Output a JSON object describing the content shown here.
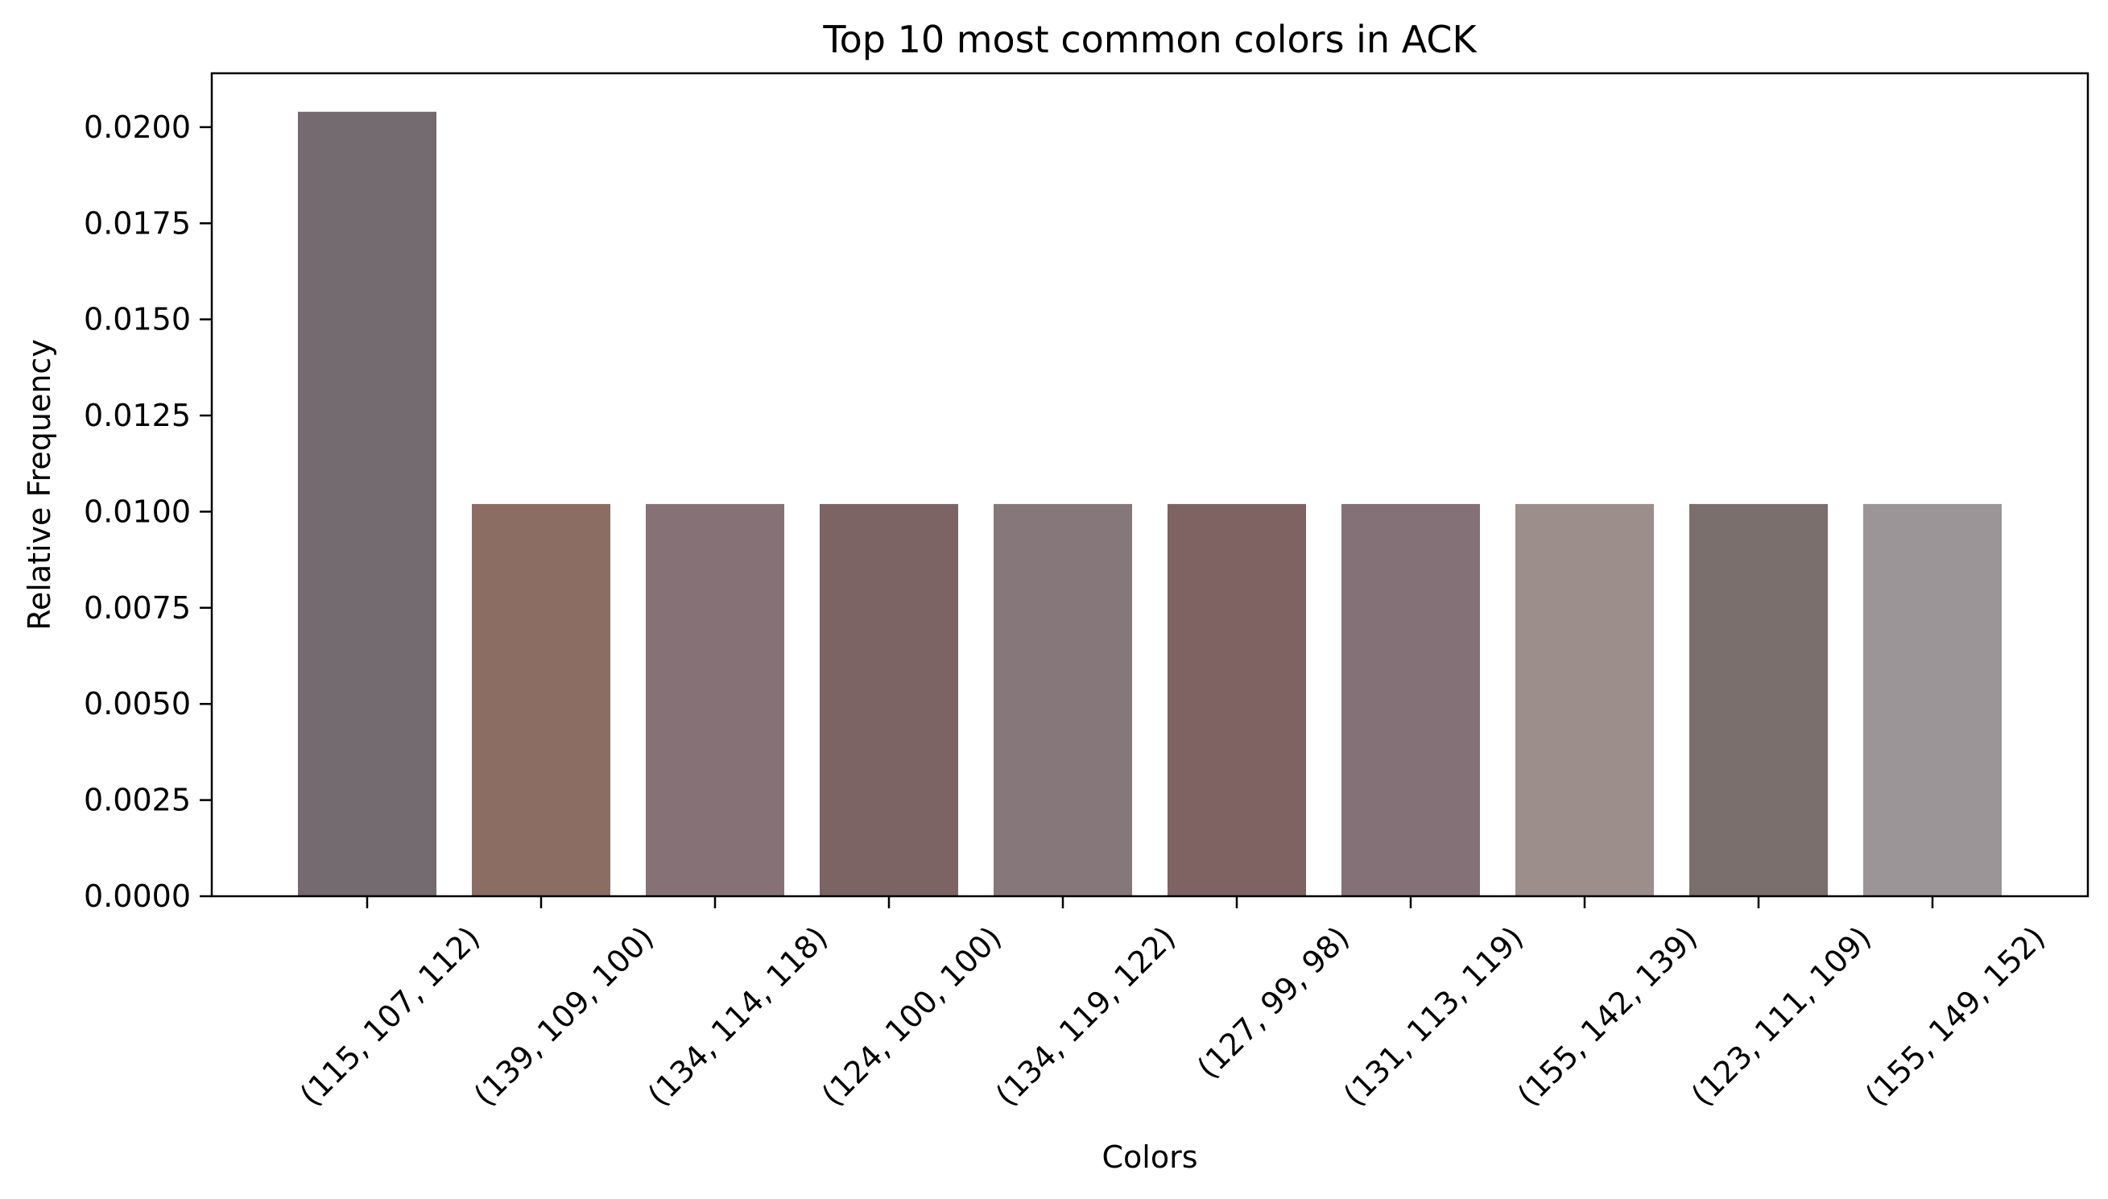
{
  "chart_data": {
    "type": "bar",
    "title": "Top 10 most common colors in ACK",
    "xlabel": "Colors",
    "ylabel": "Relative Frequency",
    "categories": [
      "(115, 107, 112)",
      "(139, 109, 100)",
      "(134, 114, 118)",
      "(124, 100, 100)",
      "(134, 119, 122)",
      "(127, 99, 98)",
      "(131, 113, 119)",
      "(155, 142, 139)",
      "(123, 111, 109)",
      "(155, 149, 152)"
    ],
    "values": [
      0.0204,
      0.0102,
      0.0102,
      0.0102,
      0.0102,
      0.0102,
      0.0102,
      0.0102,
      0.0102,
      0.0102
    ],
    "bar_colors": [
      "#736b70",
      "#8b6d64",
      "#867276",
      "#7c6464",
      "#86777a",
      "#7f6362",
      "#837177",
      "#9b8e8b",
      "#7b6f6d",
      "#9b9598"
    ],
    "ylim": [
      0,
      0.0214
    ],
    "yticks": [
      "0.0000",
      "0.0025",
      "0.0050",
      "0.0075",
      "0.0100",
      "0.0125",
      "0.0150",
      "0.0175",
      "0.0200"
    ],
    "grid": false,
    "legend": "none"
  }
}
